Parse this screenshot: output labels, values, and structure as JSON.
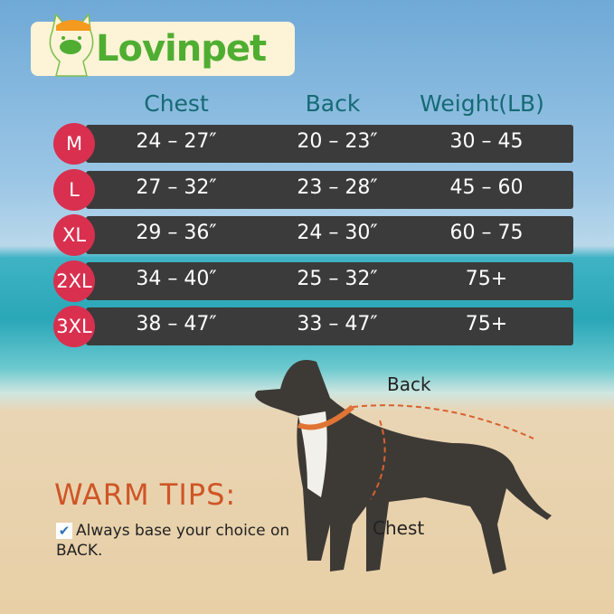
{
  "logo": {
    "brand": "Lovinpet"
  },
  "headers": [
    "Chest",
    "Back",
    "Weight(LB)"
  ],
  "rows": [
    {
      "size": "M",
      "chest": "24 – 27″",
      "back": "20 – 23″",
      "weight": "30 – 45"
    },
    {
      "size": "L",
      "chest": "27 – 32″",
      "back": "23 – 28″",
      "weight": "45 – 60"
    },
    {
      "size": "XL",
      "chest": "29 – 36″",
      "back": "24 – 30″",
      "weight": "60 – 75"
    },
    {
      "size": "2XL",
      "chest": "34 – 40″",
      "back": "25 – 32″",
      "weight": "75+"
    },
    {
      "size": "3XL",
      "chest": "38 – 47″",
      "back": "33 – 47″",
      "weight": "75+"
    }
  ],
  "tips": {
    "title": "WARM TIPS:",
    "check": "✔",
    "text": "Always base your choice on BACK."
  },
  "dog_labels": {
    "back": "Back",
    "chest": "Chest"
  },
  "colors": {
    "badge": "#d9304f",
    "row": "#3b3b3b",
    "header": "#166a74",
    "tips": "#cf5526",
    "brand": "#4fae32",
    "measure": "#d8612e"
  }
}
